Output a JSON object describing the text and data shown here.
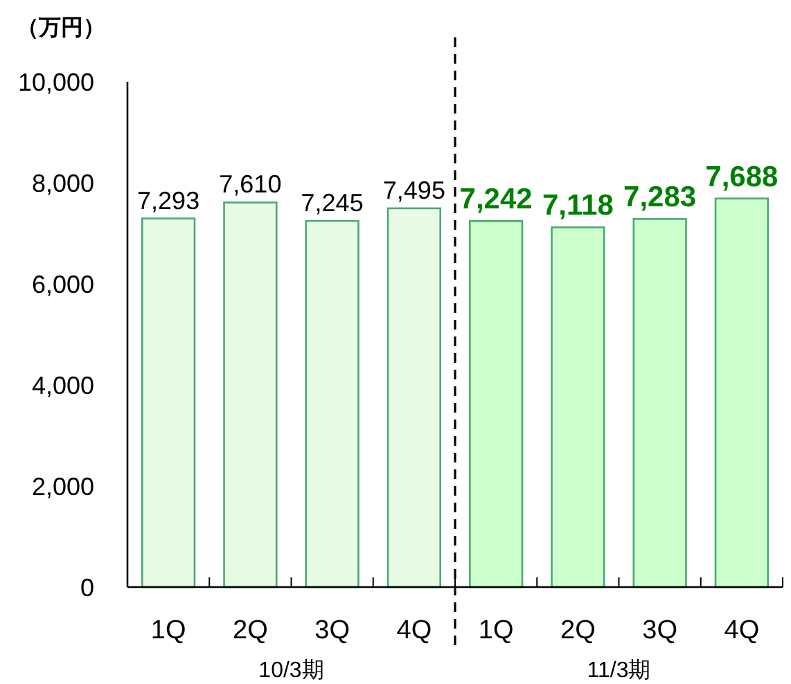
{
  "chart_data": {
    "type": "bar",
    "ylabel": "（万円）",
    "categories": [
      "1Q",
      "2Q",
      "3Q",
      "4Q",
      "1Q",
      "2Q",
      "3Q",
      "4Q"
    ],
    "series": [
      {
        "color": "#e8fbe4",
        "values": [
          7293,
          7610,
          7245,
          7495,
          null,
          null,
          null,
          null
        ],
        "value_labels": [
          "7,293",
          "7,610",
          "7,245",
          "7,495",
          null,
          null,
          null,
          null
        ]
      },
      {
        "color": "#ccffcc",
        "values": [
          null,
          null,
          null,
          null,
          7242,
          7118,
          7283,
          7688
        ],
        "value_labels": [
          null,
          null,
          null,
          null,
          "7,242",
          "7,118",
          "7,283",
          "7,688"
        ]
      }
    ],
    "ylim": [
      0,
      10000
    ],
    "yticks": [
      0,
      {
        "value": 2000,
        "label": "2,000"
      },
      {
        "value": 4000,
        "label": "4,000"
      },
      {
        "value": 6000,
        "label": "6,000"
      },
      {
        "value": 8000,
        "label": "8,000"
      },
      {
        "value": 10000,
        "label": "10,000"
      }
    ],
    "annotations": [
      "10/3期",
      "11/3期"
    ]
  }
}
